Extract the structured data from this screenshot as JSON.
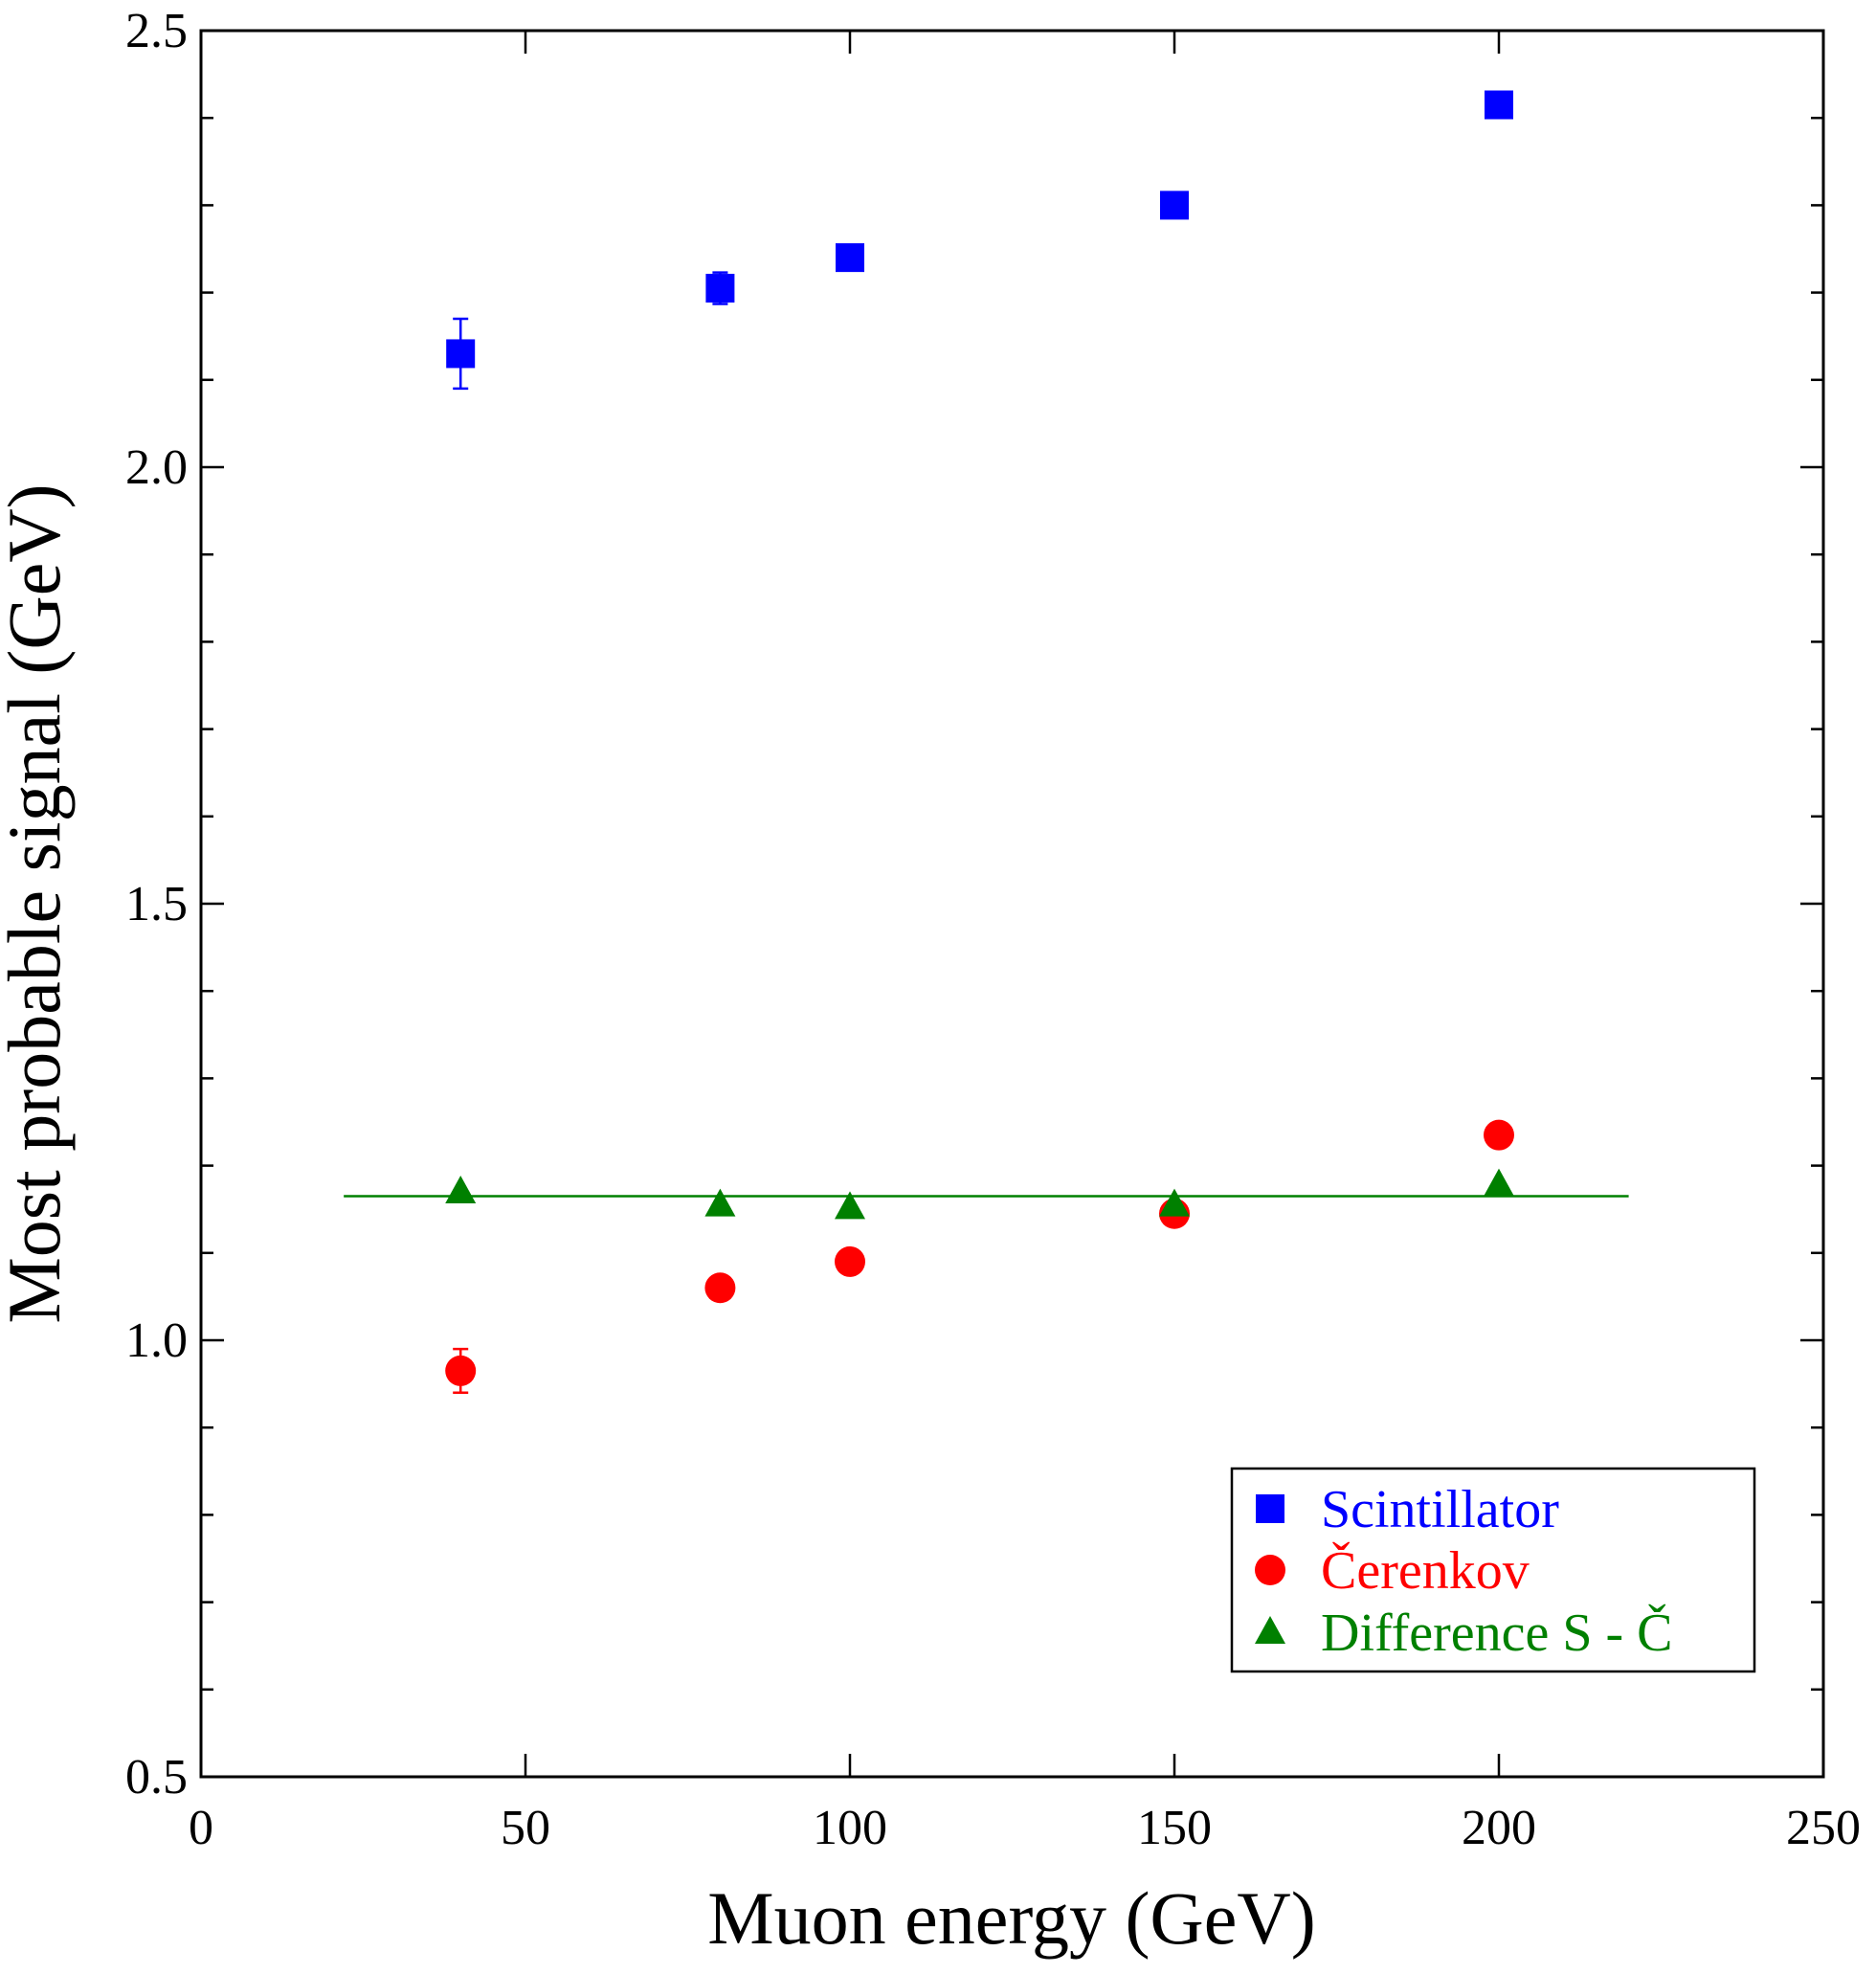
{
  "chart_data": {
    "type": "scatter",
    "title": "",
    "xlabel": "Muon energy (GeV)",
    "ylabel": "Most probable signal (GeV)",
    "xlim": [
      0,
      250
    ],
    "ylim": [
      0.5,
      2.5
    ],
    "x_ticks": [
      0,
      50,
      100,
      150,
      200,
      250
    ],
    "x_tick_labels": [
      "0",
      "50",
      "100",
      "150",
      "200",
      "250"
    ],
    "y_ticks": [
      0.5,
      1.0,
      1.5,
      2.0,
      2.5
    ],
    "y_tick_labels": [
      "0.5",
      "1.0",
      "1.5",
      "2.0",
      "2.5"
    ],
    "y_minor_step": 0.1,
    "grid": false,
    "legend_position": "bottom-right",
    "series": [
      {
        "name": "Scintillator",
        "marker": "square",
        "color": "#0000ff",
        "points": [
          {
            "x": 40,
            "y": 2.13,
            "err": 0.04
          },
          {
            "x": 80,
            "y": 2.205,
            "err": 0.018
          },
          {
            "x": 100,
            "y": 2.24,
            "err": 0.008
          },
          {
            "x": 150,
            "y": 2.3,
            "err": 0.008
          },
          {
            "x": 200,
            "y": 2.415,
            "err": 0.008
          }
        ]
      },
      {
        "name": "Čerenkov",
        "marker": "circle",
        "color": "#ff0000",
        "points": [
          {
            "x": 40,
            "y": 0.965,
            "err": 0.025
          },
          {
            "x": 80,
            "y": 1.06,
            "err": 0.008
          },
          {
            "x": 100,
            "y": 1.09,
            "err": 0.008
          },
          {
            "x": 150,
            "y": 1.145,
            "err": 0.008
          },
          {
            "x": 200,
            "y": 1.235,
            "err": 0.008
          }
        ]
      },
      {
        "name": "Difference S - Č",
        "marker": "triangle",
        "color": "#008000",
        "points": [
          {
            "x": 40,
            "y": 1.17
          },
          {
            "x": 80,
            "y": 1.155
          },
          {
            "x": 100,
            "y": 1.152
          },
          {
            "x": 150,
            "y": 1.155
          },
          {
            "x": 200,
            "y": 1.178
          }
        ]
      }
    ],
    "fit_line": {
      "color": "#008000",
      "x": [
        22,
        220
      ],
      "y": [
        1.165,
        1.165
      ]
    }
  }
}
